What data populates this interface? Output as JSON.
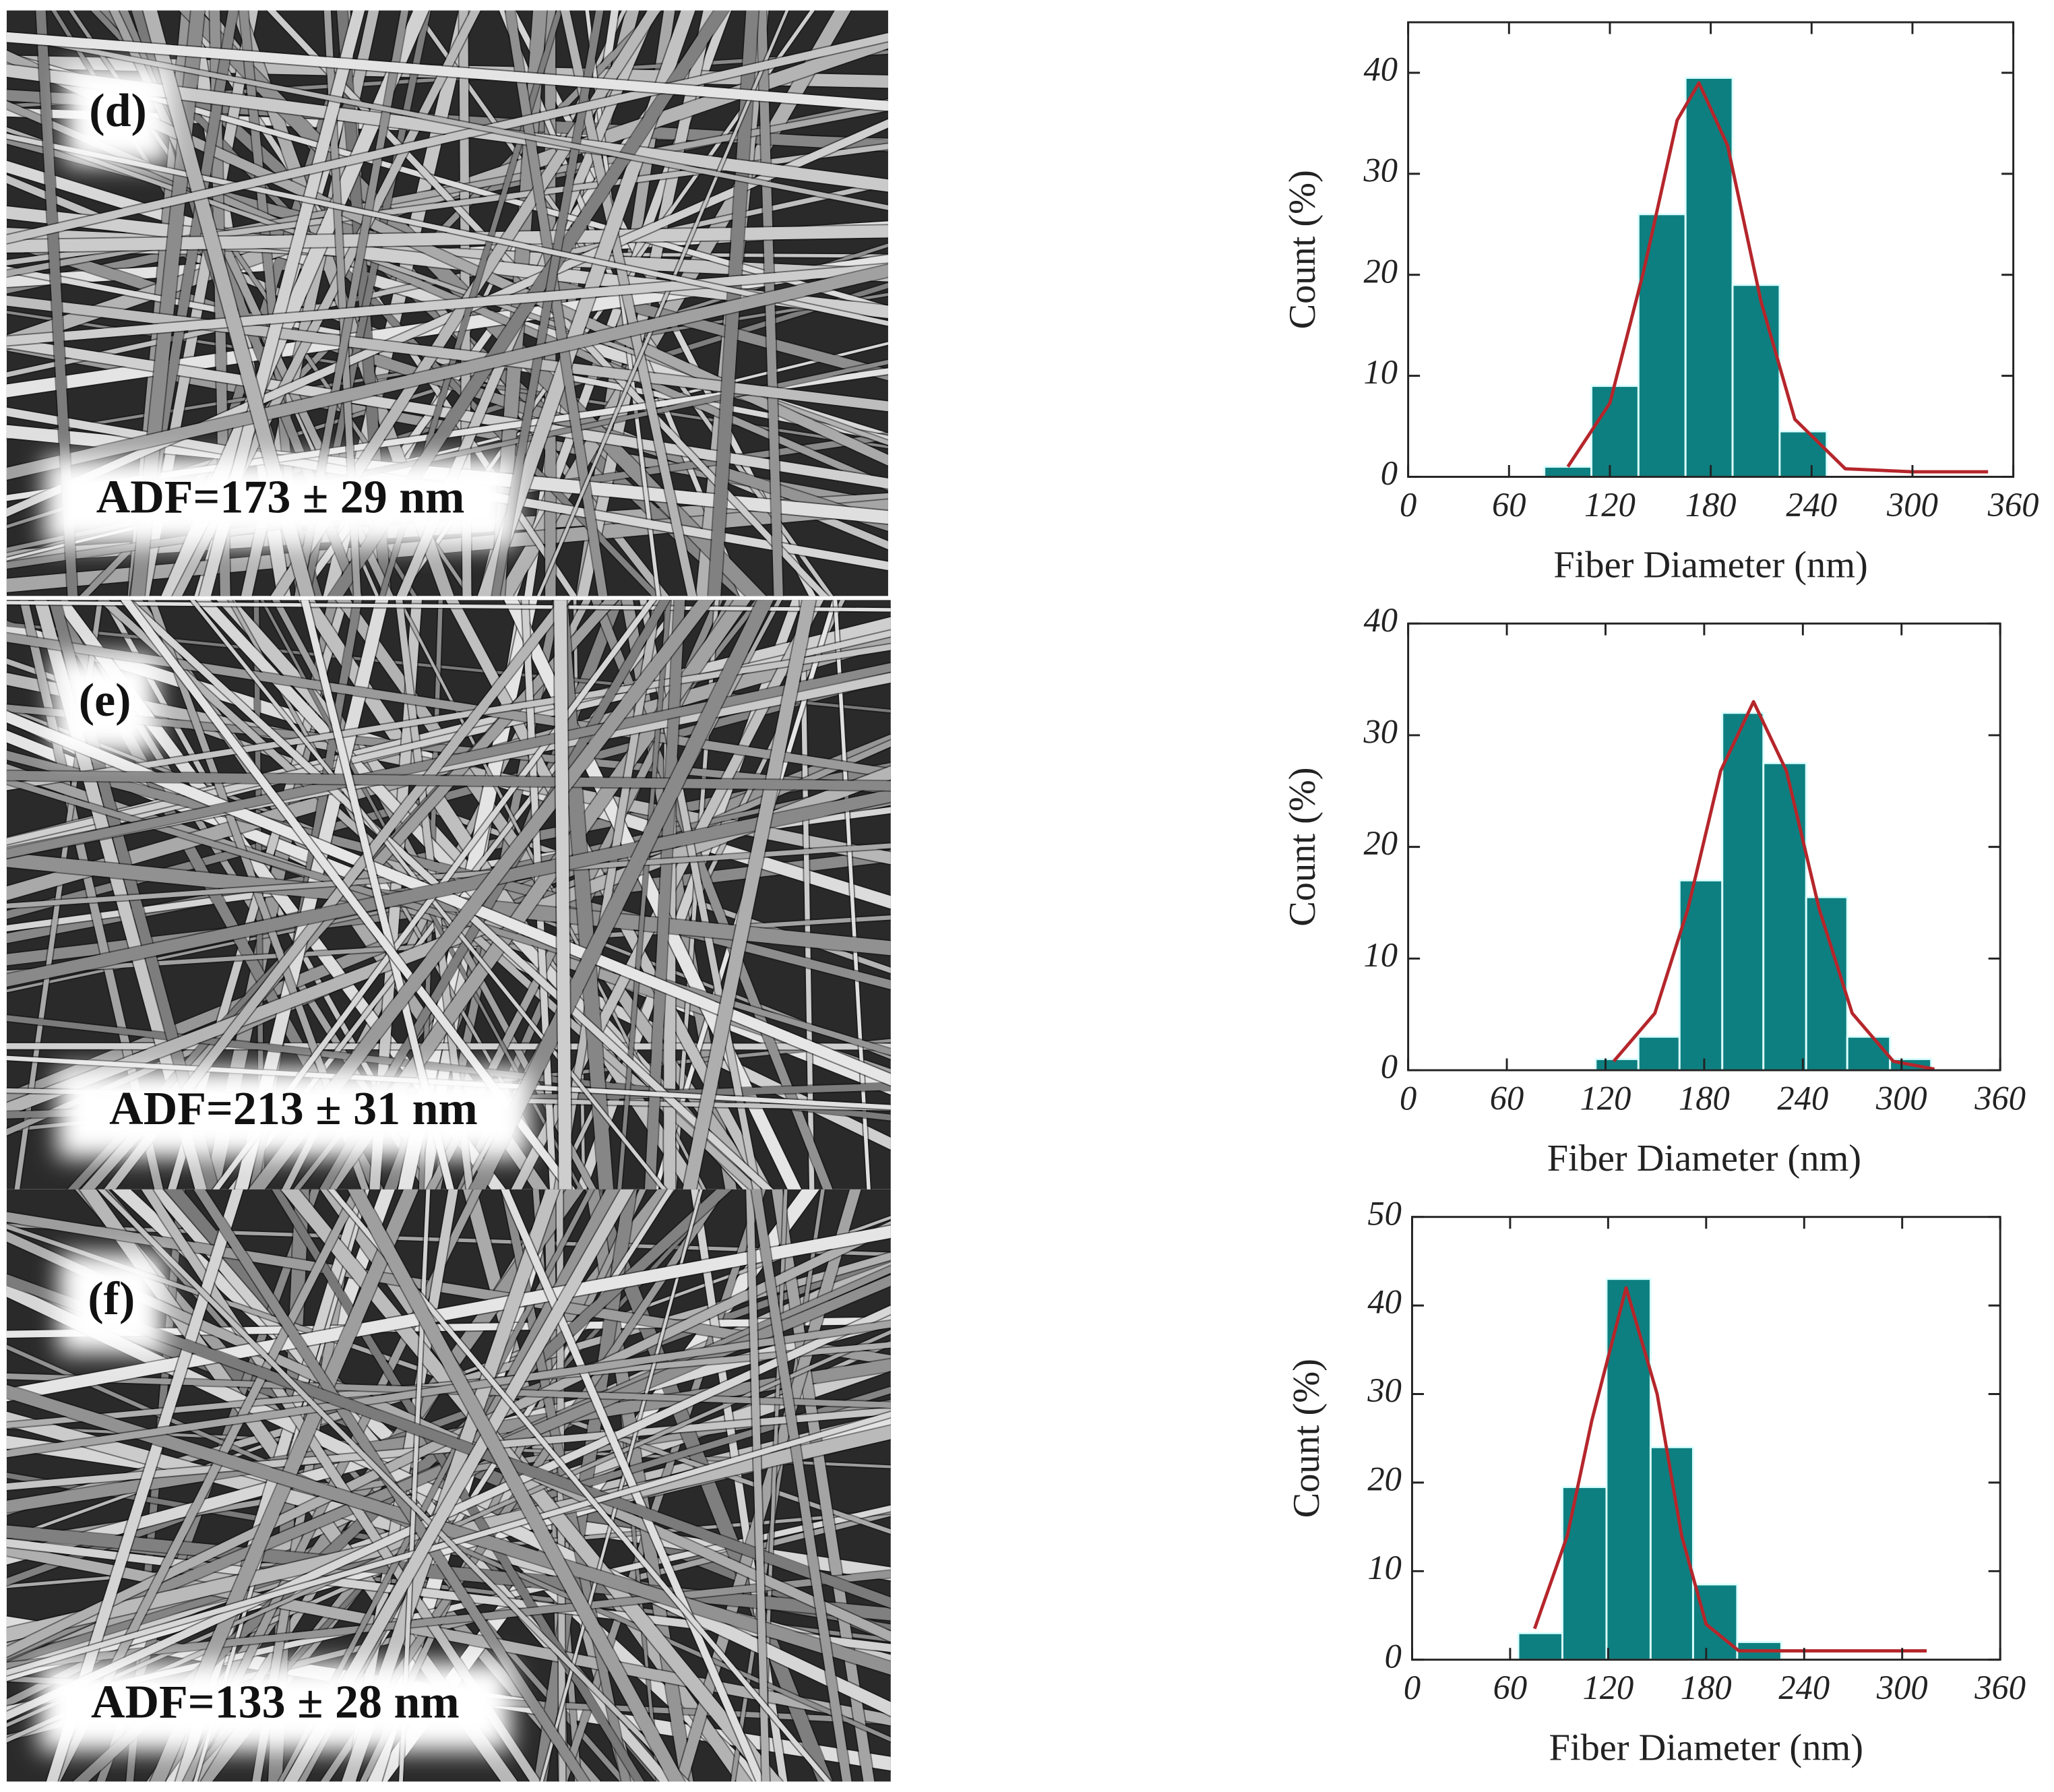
{
  "chart_data": [
    {
      "type": "histogram",
      "panel_label": "(d)",
      "annotation": "ADF=173 ± 29 nm",
      "xlabel": "Fiber Diameter (nm)",
      "ylabel": "Count (%)",
      "color": "#0e7f80",
      "bins": [
        81,
        109,
        137,
        165,
        193,
        221,
        249
      ],
      "counts": [
        1,
        9,
        26,
        39.5,
        19,
        4.5
      ],
      "fit": {
        "color": "#b5262b",
        "x": [
          95,
          120,
          140,
          160,
          173,
          190,
          210,
          230,
          260,
          300,
          345
        ],
        "y": [
          1,
          7.3,
          20.3,
          35.3,
          39,
          32.8,
          17.3,
          5.7,
          0.8,
          0.5,
          0.5
        ]
      },
      "xlim": [
        0,
        360
      ],
      "xticks": [
        0,
        60,
        120,
        180,
        240,
        300,
        360
      ],
      "ylim": [
        0,
        45
      ],
      "yticks": [
        0,
        10,
        20,
        30,
        40
      ]
    },
    {
      "type": "histogram",
      "panel_label": "(e)",
      "annotation": "ADF=213 ± 31 nm",
      "xlabel": "Fiber Diameter (nm)",
      "ylabel": "Count (%)",
      "color": "#0e7f80",
      "bins": [
        114,
        140,
        165,
        191,
        216,
        242,
        267,
        293,
        318
      ],
      "counts": [
        1,
        3,
        17,
        32,
        27.5,
        15.5,
        3,
        1
      ],
      "fit": {
        "color": "#b5262b",
        "x": [
          125,
          150,
          170,
          190,
          210,
          230,
          250,
          270,
          295,
          320
        ],
        "y": [
          0.8,
          5.1,
          14.4,
          26.8,
          33,
          26.8,
          14.4,
          5.1,
          0.8,
          0.1
        ]
      },
      "xlim": [
        0,
        360
      ],
      "xticks": [
        0,
        60,
        120,
        180,
        240,
        300,
        360
      ],
      "ylim": [
        0,
        40
      ],
      "yticks": [
        0,
        10,
        20,
        30,
        40
      ]
    },
    {
      "type": "histogram",
      "panel_label": "(f)",
      "annotation": "ADF=133 ± 28 nm",
      "xlabel": "Fiber Diameter (nm)",
      "ylabel": "Count (%)",
      "color": "#0e7f80",
      "bins": [
        65,
        92,
        119,
        146,
        172,
        199,
        226
      ],
      "counts": [
        3,
        19.5,
        43,
        24,
        8.5,
        2
      ],
      "fit": {
        "color": "#b5262b",
        "x": [
          75,
          95,
          110,
          131,
          150,
          165,
          180,
          200,
          230,
          315
        ],
        "y": [
          3.5,
          14,
          27,
          42,
          30,
          14,
          4,
          1,
          1,
          1
        ]
      },
      "xlim": [
        0,
        360
      ],
      "xticks": [
        0,
        60,
        120,
        180,
        240,
        300,
        360
      ],
      "ylim": [
        0,
        50
      ],
      "yticks": [
        0,
        10,
        20,
        30,
        40,
        50
      ]
    }
  ]
}
